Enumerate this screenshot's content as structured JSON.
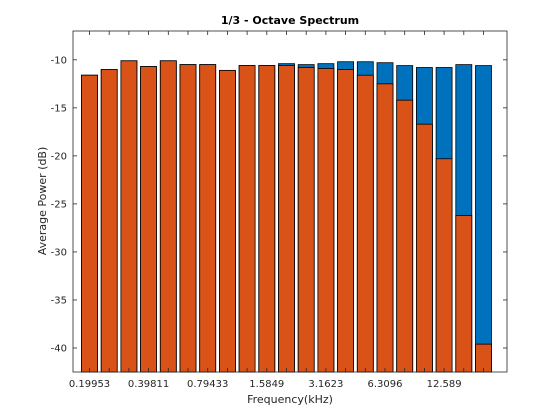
{
  "chart_data": {
    "type": "bar",
    "title": "1/3 - Octave Spectrum",
    "xlabel": "Frequency(kHz)",
    "ylabel": "Average Power (dB)",
    "ylim": [
      -42.5,
      -7
    ],
    "yticks": [
      -10,
      -15,
      -20,
      -25,
      -30,
      -35,
      -40
    ],
    "xtick_labels": [
      "0.19953",
      "0.39811",
      "0.79433",
      "1.5849",
      "3.1623",
      "6.3096",
      "12.589"
    ],
    "xtick_every": 3,
    "grid": false,
    "legend": false,
    "series": [
      {
        "color": "#0072BD",
        "values": [
          -11.6,
          -11.0,
          -10.1,
          -10.7,
          -10.1,
          -10.5,
          -10.5,
          -11.1,
          -10.6,
          -10.6,
          -10.4,
          -10.5,
          -10.4,
          -10.2,
          -10.2,
          -10.3,
          -10.6,
          -10.8,
          -10.8,
          -10.5,
          -10.6
        ]
      },
      {
        "color": "#D95319",
        "values": [
          -11.6,
          -11.0,
          -10.1,
          -10.7,
          -10.1,
          -10.5,
          -10.5,
          -11.1,
          -10.6,
          -10.6,
          -10.6,
          -10.8,
          -10.9,
          -11.0,
          -11.6,
          -12.5,
          -14.2,
          -16.7,
          -20.3,
          -26.2,
          -39.6
        ]
      }
    ]
  }
}
